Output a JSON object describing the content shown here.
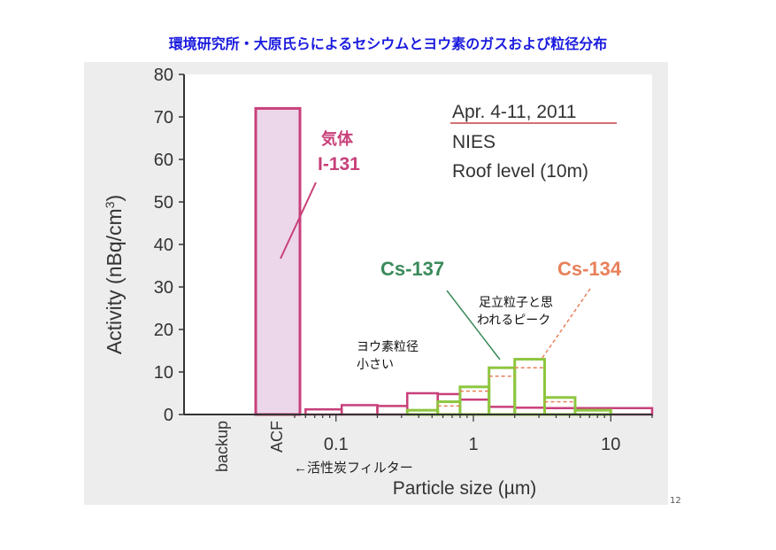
{
  "slide": {
    "title": "環境研究所・大原氏らによるセシウムとヨウ素のガスおよび粒径分布",
    "page_number": "12"
  },
  "chart_data": {
    "type": "bar",
    "ylabel_main": "Activity (nBq/cm",
    "ylabel_sup": "3",
    "ylabel_tail": ")",
    "xlabel": "Particle size (µm)",
    "ylim": [
      0,
      80
    ],
    "yticks": [
      0,
      10,
      20,
      30,
      40,
      50,
      60,
      70,
      80
    ],
    "x_scale": "log",
    "xlim": [
      0.05,
      20
    ],
    "xtick_labels": [
      {
        "value": 0.1,
        "label": "0.1"
      },
      {
        "value": 1,
        "label": "1"
      },
      {
        "value": 10,
        "label": "10"
      }
    ],
    "categorical_ticks": [
      "backup",
      "ACF"
    ],
    "acf_note": "←活性炭フィルター",
    "info_box": [
      "Apr. 4-11, 2011",
      "NIES",
      "Roof level (10m)"
    ],
    "series": [
      {
        "name": "I-131",
        "name_jp": "気体",
        "color": "#c8407a",
        "fill": "#ecd7ea",
        "acf_value": 72,
        "bins": [
          {
            "x0": 0.06,
            "x1": 0.11,
            "y": 1.2
          },
          {
            "x0": 0.11,
            "x1": 0.2,
            "y": 2.2
          },
          {
            "x0": 0.2,
            "x1": 0.33,
            "y": 2.0
          },
          {
            "x0": 0.33,
            "x1": 0.55,
            "y": 5.0
          },
          {
            "x0": 0.55,
            "x1": 0.8,
            "y": 4.8
          },
          {
            "x0": 0.8,
            "x1": 1.3,
            "y": 3.5
          },
          {
            "x0": 1.3,
            "x1": 2.0,
            "y": 1.8
          },
          {
            "x0": 2.0,
            "x1": 3.3,
            "y": 1.6
          },
          {
            "x0": 3.3,
            "x1": 5.5,
            "y": 1.5
          },
          {
            "x0": 5.5,
            "x1": 10,
            "y": 1.5
          },
          {
            "x0": 10,
            "x1": 20,
            "y": 1.5
          }
        ]
      },
      {
        "name": "Cs-137",
        "color": "#8dc63f",
        "label_color": "#3a8a5a",
        "bins": [
          {
            "x0": 0.33,
            "x1": 0.55,
            "y": 1.0
          },
          {
            "x0": 0.55,
            "x1": 0.8,
            "y": 3.0
          },
          {
            "x0": 0.8,
            "x1": 1.3,
            "y": 6.5
          },
          {
            "x0": 1.3,
            "x1": 2.0,
            "y": 11.0
          },
          {
            "x0": 2.0,
            "x1": 3.3,
            "y": 13.0
          },
          {
            "x0": 3.3,
            "x1": 5.5,
            "y": 4.0
          },
          {
            "x0": 5.5,
            "x1": 10,
            "y": 1.0
          }
        ]
      },
      {
        "name": "Cs-134",
        "color": "#e8805a",
        "bins": [
          {
            "x0": 0.55,
            "x1": 0.8,
            "y": 2.0
          },
          {
            "x0": 0.8,
            "x1": 1.3,
            "y": 5.5
          },
          {
            "x0": 1.3,
            "x1": 2.0,
            "y": 9.0
          },
          {
            "x0": 2.0,
            "x1": 3.3,
            "y": 11.0
          },
          {
            "x0": 3.3,
            "x1": 5.5,
            "y": 3.0
          }
        ]
      }
    ],
    "annotations": {
      "iodine_small": [
        "ヨウ素粒径",
        "小さい"
      ],
      "adachi_peak": [
        "足立粒子と思",
        "われるピーク"
      ]
    }
  }
}
